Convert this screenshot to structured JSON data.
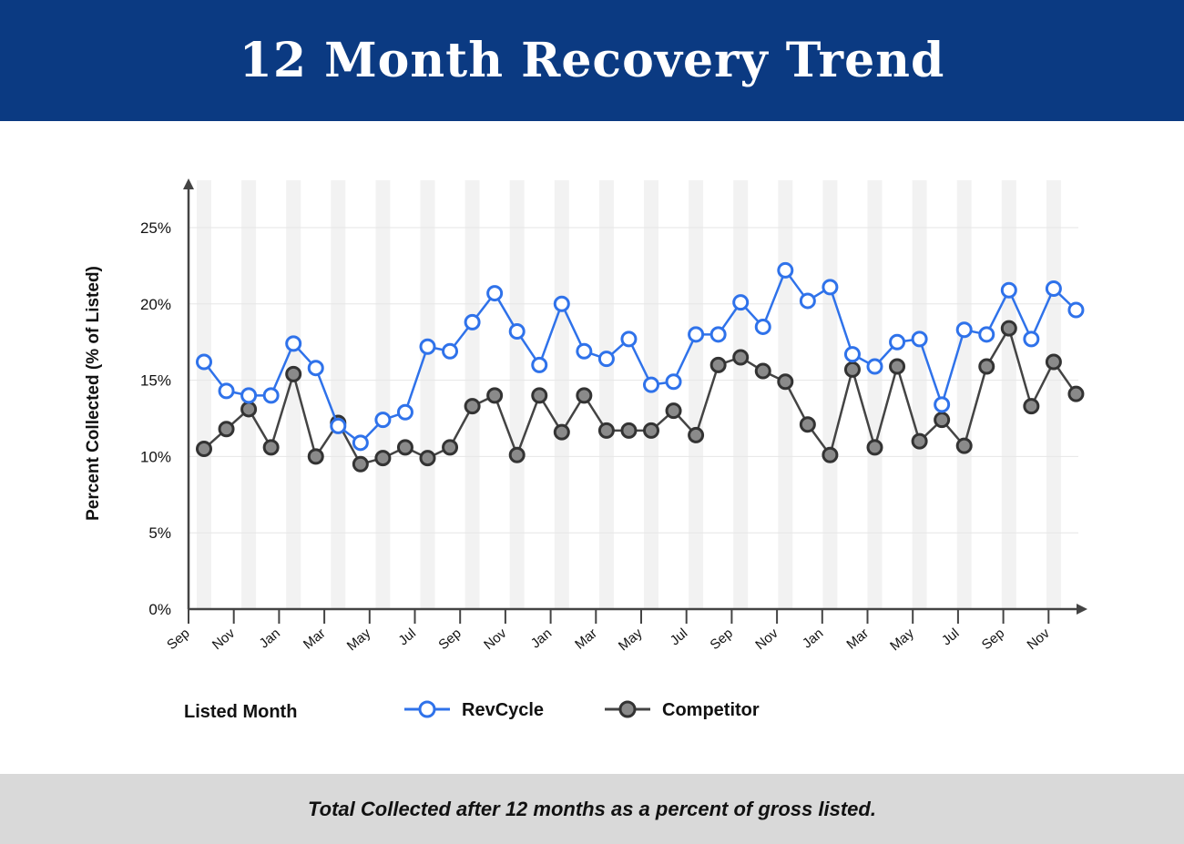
{
  "header": {
    "title": "12 Month Recovery Trend"
  },
  "footer": {
    "caption": "Total Collected after 12 months as a percent of gross listed."
  },
  "colors": {
    "header_bg": "#0b3a82",
    "revcycle": "#2f72ea",
    "competitor": "#444444",
    "footer_bg": "#d9d9d9"
  },
  "chart_data": {
    "type": "line",
    "ylabel": "Percent Collected (% of Listed)",
    "xlabel": "Listed Month",
    "ylim": [
      0,
      27
    ],
    "yticks": [
      0,
      5,
      10,
      15,
      20,
      25
    ],
    "ytick_labels": [
      "0%",
      "5%",
      "10%",
      "15%",
      "20%",
      "25%"
    ],
    "xtick_labels": [
      "Sep",
      "Nov",
      "Jan",
      "Mar",
      "May",
      "Jul",
      "Sep",
      "Nov",
      "Jan",
      "Mar",
      "May",
      "Jul",
      "Sep",
      "Nov",
      "Jan",
      "Mar",
      "May",
      "Jul",
      "Sep",
      "Nov"
    ],
    "grid": true,
    "legend": "bottom",
    "series": [
      {
        "name": "RevCycle",
        "values": [
          16.2,
          14.3,
          14.0,
          14.0,
          17.4,
          15.8,
          12.0,
          10.9,
          12.4,
          12.9,
          17.2,
          16.9,
          18.8,
          20.7,
          18.2,
          16.0,
          20.0,
          16.9,
          16.4,
          17.7,
          14.7,
          14.9,
          18.0,
          18.0,
          20.1,
          18.5,
          22.2,
          20.2,
          21.1,
          16.7,
          15.9,
          17.5,
          17.7,
          13.4,
          18.3,
          18.0,
          20.9,
          17.7,
          21.0,
          19.6
        ]
      },
      {
        "name": "Competitor",
        "values": [
          10.5,
          11.8,
          13.1,
          10.6,
          15.4,
          10.0,
          12.2,
          9.5,
          9.9,
          10.6,
          9.9,
          10.6,
          13.3,
          14.0,
          10.1,
          14.0,
          11.6,
          14.0,
          11.7,
          11.7,
          11.7,
          13.0,
          11.4,
          16.0,
          16.5,
          15.6,
          14.9,
          12.1,
          10.1,
          15.7,
          10.6,
          15.9,
          11.0,
          12.4,
          10.7,
          15.9,
          18.4,
          13.3,
          16.2,
          14.1
        ]
      }
    ]
  }
}
